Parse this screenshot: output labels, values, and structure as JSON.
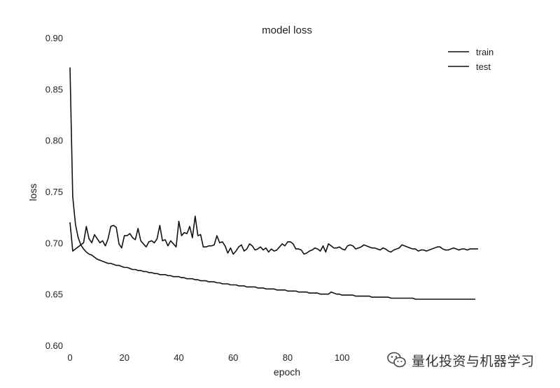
{
  "chart_data": {
    "type": "line",
    "title": "model loss",
    "xlabel": "epoch",
    "ylabel": "loss",
    "xlim": [
      0,
      150
    ],
    "ylim": [
      0.6,
      0.9
    ],
    "x_ticks": [
      "0",
      "20",
      "40",
      "60",
      "80",
      "100"
    ],
    "y_ticks": [
      "0.60",
      "0.65",
      "0.70",
      "0.75",
      "0.80",
      "0.85",
      "0.90"
    ],
    "grid": false,
    "legend_position": "top-right",
    "series": [
      {
        "name": "train",
        "values": [
          0.871,
          0.745,
          0.718,
          0.705,
          0.698,
          0.694,
          0.691,
          0.689,
          0.688,
          0.686,
          0.684,
          0.683,
          0.682,
          0.681,
          0.68,
          0.68,
          0.679,
          0.678,
          0.678,
          0.677,
          0.676,
          0.676,
          0.675,
          0.674,
          0.674,
          0.673,
          0.673,
          0.672,
          0.672,
          0.671,
          0.671,
          0.67,
          0.67,
          0.669,
          0.669,
          0.669,
          0.668,
          0.668,
          0.667,
          0.667,
          0.667,
          0.666,
          0.666,
          0.665,
          0.665,
          0.665,
          0.664,
          0.664,
          0.663,
          0.663,
          0.663,
          0.662,
          0.662,
          0.662,
          0.661,
          0.661,
          0.66,
          0.66,
          0.66,
          0.659,
          0.659,
          0.659,
          0.658,
          0.658,
          0.658,
          0.657,
          0.657,
          0.657,
          0.657,
          0.656,
          0.656,
          0.656,
          0.655,
          0.655,
          0.655,
          0.655,
          0.654,
          0.654,
          0.654,
          0.654,
          0.653,
          0.653,
          0.653,
          0.653,
          0.652,
          0.652,
          0.652,
          0.652,
          0.651,
          0.651,
          0.651,
          0.651,
          0.65,
          0.65,
          0.65,
          0.65,
          0.652,
          0.651,
          0.65,
          0.65,
          0.649,
          0.649,
          0.649,
          0.649,
          0.649,
          0.648,
          0.648,
          0.648,
          0.648,
          0.648,
          0.648,
          0.647,
          0.647,
          0.647,
          0.647,
          0.647,
          0.647,
          0.647,
          0.646,
          0.646,
          0.646,
          0.646,
          0.646,
          0.646,
          0.646,
          0.646,
          0.646,
          0.645,
          0.645,
          0.645,
          0.645,
          0.645,
          0.645,
          0.645,
          0.645,
          0.645,
          0.645,
          0.645,
          0.645,
          0.645,
          0.645,
          0.645,
          0.645,
          0.645,
          0.645,
          0.645,
          0.645,
          0.645,
          0.645,
          0.645
        ]
      },
      {
        "name": "test",
        "values": [
          0.72,
          0.692,
          0.694,
          0.696,
          0.698,
          0.7,
          0.716,
          0.704,
          0.7,
          0.708,
          0.704,
          0.7,
          0.702,
          0.697,
          0.704,
          0.716,
          0.717,
          0.715,
          0.699,
          0.695,
          0.707,
          0.707,
          0.709,
          0.705,
          0.703,
          0.714,
          0.702,
          0.699,
          0.696,
          0.701,
          0.702,
          0.7,
          0.704,
          0.717,
          0.702,
          0.703,
          0.697,
          0.702,
          0.699,
          0.696,
          0.721,
          0.707,
          0.71,
          0.709,
          0.716,
          0.705,
          0.726,
          0.707,
          0.708,
          0.696,
          0.696,
          0.697,
          0.697,
          0.698,
          0.707,
          0.7,
          0.701,
          0.697,
          0.69,
          0.695,
          0.689,
          0.692,
          0.696,
          0.698,
          0.692,
          0.694,
          0.699,
          0.697,
          0.693,
          0.694,
          0.696,
          0.693,
          0.695,
          0.691,
          0.694,
          0.692,
          0.693,
          0.696,
          0.699,
          0.697,
          0.701,
          0.701,
          0.699,
          0.694,
          0.694,
          0.693,
          0.689,
          0.69,
          0.692,
          0.693,
          0.695,
          0.694,
          0.692,
          0.697,
          0.691,
          0.699,
          0.697,
          0.695,
          0.695,
          0.696,
          0.694,
          0.693,
          0.697,
          0.698,
          0.697,
          0.694,
          0.695,
          0.696,
          0.698,
          0.697,
          0.696,
          0.695,
          0.695,
          0.694,
          0.693,
          0.695,
          0.694,
          0.692,
          0.691,
          0.693,
          0.694,
          0.695,
          0.698,
          0.697,
          0.696,
          0.695,
          0.694,
          0.694,
          0.692,
          0.693,
          0.693,
          0.692,
          0.693,
          0.694,
          0.695,
          0.696,
          0.696,
          0.694,
          0.693,
          0.693,
          0.694,
          0.695,
          0.694,
          0.693,
          0.694,
          0.694,
          0.693,
          0.694,
          0.694,
          0.694,
          0.694
        ]
      }
    ]
  },
  "watermark": {
    "text": "量化投资与机器学习",
    "icon": "wechat-icon"
  }
}
